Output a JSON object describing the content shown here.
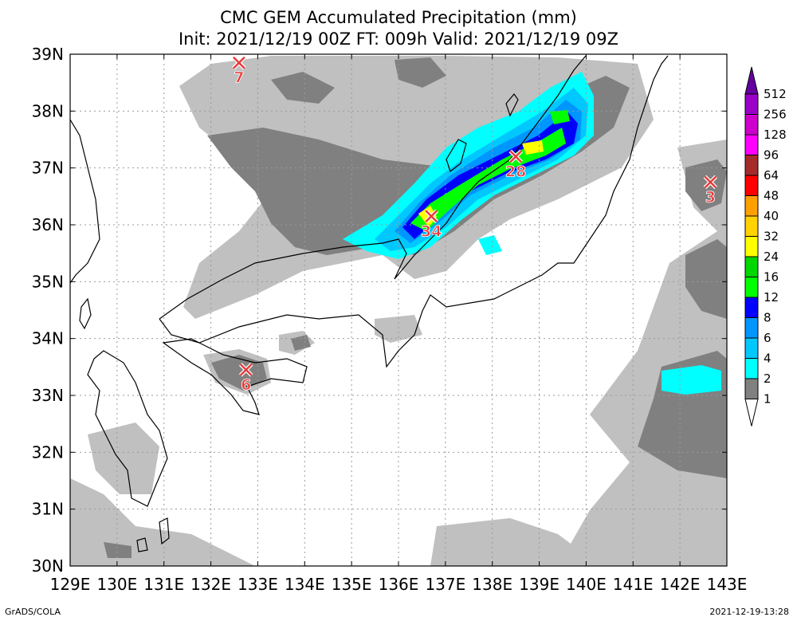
{
  "title_line1": "CMC GEM Accumulated Precipitation (mm)",
  "title_line2": "Init: 2021/12/19 00Z  FT: 009h  Valid: 2021/12/19 09Z",
  "footer_left": "GrADS/COLA",
  "footer_right": "2021-12-19-13:28",
  "map": {
    "lon_range": [
      129,
      143
    ],
    "lat_range": [
      30,
      39
    ],
    "lon_labels": [
      "129E",
      "130E",
      "131E",
      "132E",
      "133E",
      "134E",
      "135E",
      "136E",
      "137E",
      "138E",
      "139E",
      "140E",
      "141E",
      "142E",
      "143E"
    ],
    "lat_labels": [
      "30N",
      "31N",
      "32N",
      "33N",
      "34N",
      "35N",
      "36N",
      "37N",
      "38N",
      "39N"
    ],
    "grid": true
  },
  "colorbar": {
    "levels": [
      "1",
      "2",
      "4",
      "6",
      "8",
      "12",
      "16",
      "24",
      "32",
      "40",
      "48",
      "64",
      "96",
      "128",
      "256",
      "512"
    ],
    "colors": [
      "#c0c0c0",
      "#808080",
      "#00ffff",
      "#00c8ff",
      "#0096ff",
      "#0000ff",
      "#00ff00",
      "#00d600",
      "#ffff00",
      "#ffd200",
      "#ffa000",
      "#ff0000",
      "#a52a2a",
      "#ff00ff",
      "#cd00cd",
      "#9b00c8",
      "#6400a0"
    ]
  },
  "markers": [
    {
      "lon": 132.6,
      "lat": 38.85,
      "value": "7"
    },
    {
      "lon": 132.75,
      "lat": 33.45,
      "value": "6"
    },
    {
      "lon": 136.7,
      "lat": 36.15,
      "value": "34"
    },
    {
      "lon": 138.5,
      "lat": 37.2,
      "value": "28"
    },
    {
      "lon": 142.65,
      "lat": 36.75,
      "value": "3"
    }
  ]
}
